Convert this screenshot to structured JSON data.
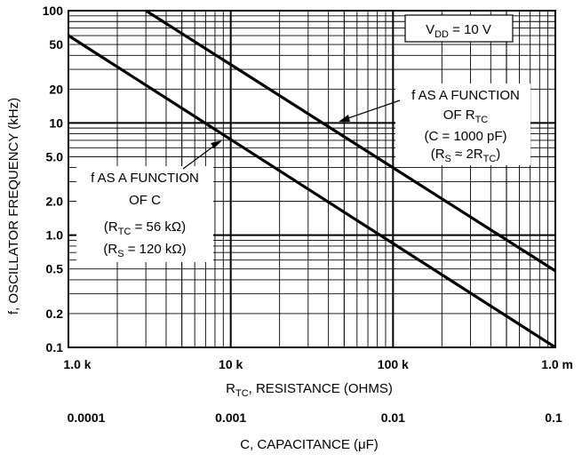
{
  "chart_data": {
    "type": "line",
    "x_scale": "log",
    "y_scale": "log",
    "xlim": [
      1000,
      1000000
    ],
    "ylim": [
      0.1,
      100
    ],
    "grid": true,
    "xlabel": {
      "main": "R",
      "sub": "TC",
      "rest": ", RESISTANCE (OHMS)"
    },
    "ylabel": "f, OSCILLATOR FREQUENCY (kHz)",
    "x_ticks": [
      {
        "value": 1000,
        "label": "1.0 k"
      },
      {
        "value": 10000,
        "label": "10 k"
      },
      {
        "value": 100000,
        "label": "100 k"
      },
      {
        "value": 1000000,
        "label": "1.0 m"
      }
    ],
    "y_ticks": [
      {
        "value": 100,
        "label": "100"
      },
      {
        "value": 50,
        "label": "50"
      },
      {
        "value": 20,
        "label": "20"
      },
      {
        "value": 10,
        "label": "10"
      },
      {
        "value": 5,
        "label": "5.0"
      },
      {
        "value": 2,
        "label": "2.0"
      },
      {
        "value": 1,
        "label": "1.0"
      },
      {
        "value": 0.5,
        "label": "0.5"
      },
      {
        "value": 0.2,
        "label": "0.2"
      },
      {
        "value": 0.1,
        "label": "0.1"
      }
    ],
    "secondary_x_axis": {
      "label": "C, CAPACITANCE (μF)",
      "ticks": [
        {
          "value": 0.0001,
          "label": "0.0001"
        },
        {
          "value": 0.001,
          "label": "0.001"
        },
        {
          "value": 0.01,
          "label": "0.01"
        },
        {
          "value": 0.1,
          "label": "0.1"
        }
      ]
    },
    "series": [
      {
        "key": "r_function",
        "x": [
          3000,
          1000000
        ],
        "y": [
          100,
          0.48
        ]
      },
      {
        "key": "c_function",
        "x": [
          1000,
          1000000
        ],
        "y": [
          60,
          0.1
        ]
      }
    ],
    "annotations": {
      "vdd": {
        "main": "V",
        "sub": "DD",
        "rest": " = 10 V"
      },
      "r_label": {
        "line1": "f AS A FUNCTION",
        "line2_main": "OF R",
        "line2_sub": "TC",
        "line3": "(C = 1000 pF)",
        "line4_pre": "(R",
        "line4_sub1": "S",
        "line4_mid": " ≈ 2R",
        "line4_sub2": "TC",
        "line4_post": ")"
      },
      "c_label": {
        "line1": "f AS A FUNCTION",
        "line2": "OF C",
        "line3_pre": "(R",
        "line3_sub": "TC",
        "line3_post": " = 56 kΩ)",
        "line4_pre": "(R",
        "line4_sub": "S",
        "line4_post": " = 120 kΩ)"
      }
    }
  }
}
